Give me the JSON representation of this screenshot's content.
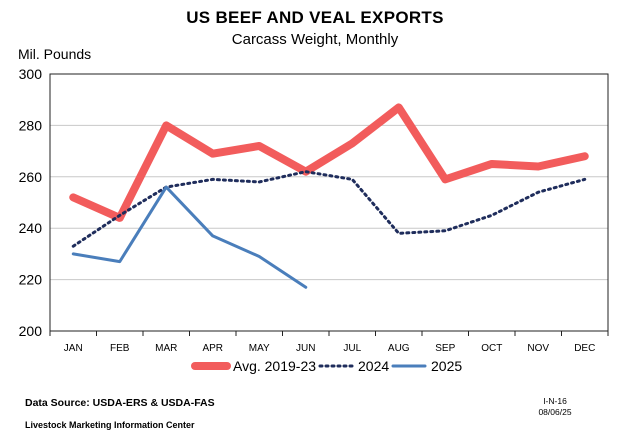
{
  "chart_data": {
    "type": "line",
    "title": "US BEEF AND VEAL EXPORTS",
    "subtitle": "Carcass Weight, Monthly",
    "ylabel": "Mil. Pounds",
    "xlabel": "",
    "categories": [
      "JAN",
      "FEB",
      "MAR",
      "APR",
      "MAY",
      "JUN",
      "JUL",
      "AUG",
      "SEP",
      "OCT",
      "NOV",
      "DEC"
    ],
    "ylim": [
      200,
      300
    ],
    "yticks": [
      200,
      220,
      240,
      260,
      280,
      300
    ],
    "grid": true,
    "legend_position": "bottom",
    "series": [
      {
        "name": "Avg. 2019-23",
        "color": "#f25c5c",
        "style": "solid-thick",
        "values": [
          252,
          244,
          280,
          269,
          272,
          262,
          273,
          287,
          259,
          265,
          264,
          268
        ]
      },
      {
        "name": "2024",
        "color": "#1f2d5c",
        "style": "dotted",
        "values": [
          233,
          245,
          256,
          259,
          258,
          262,
          259,
          238,
          239,
          245,
          254,
          259
        ]
      },
      {
        "name": "2025",
        "color": "#4a7ebb",
        "style": "solid",
        "values": [
          230,
          227,
          256,
          237,
          229,
          217,
          null,
          null,
          null,
          null,
          null,
          null
        ]
      }
    ]
  },
  "footer": {
    "source": "Data Source:  USDA-ERS & USDA-FAS",
    "org": "Livestock Marketing Information Center",
    "code": "I-N-16",
    "date": "08/06/25"
  }
}
